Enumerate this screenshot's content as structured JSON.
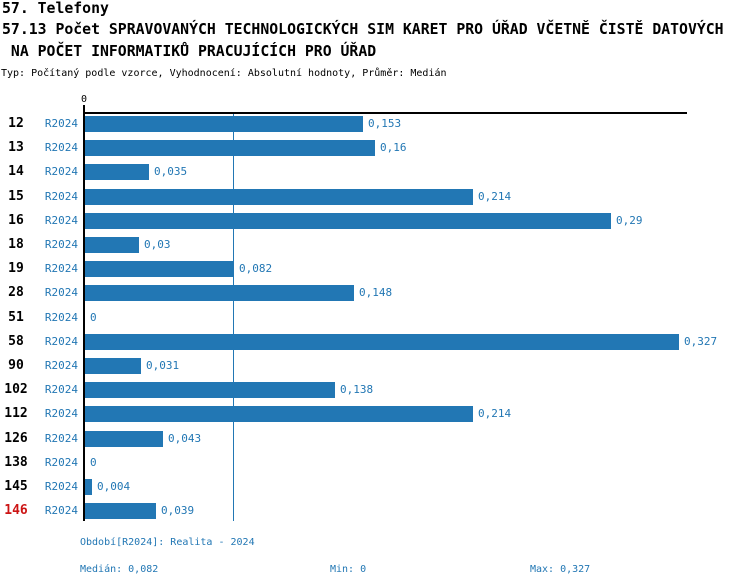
{
  "header": {
    "section_title": "57. Telefony",
    "indicator_title_line1": "57.13 Počet SPRAVOVANÝCH TECHNOLOGICKÝCH SIM KARET PRO ÚŘAD VČETNĚ ČISTĚ DATOVÝCH",
    "indicator_title_line2": " NA POČET INFORMATIKŮ PRACUJÍCÍCH PRO ÚŘAD",
    "meta": "Typ: Počítaný podle vzorce, Vyhodnocení: Absolutní hodnoty, Průměr: Medián"
  },
  "chart_data": {
    "type": "bar",
    "orientation": "horizontal",
    "series_label": "R2024",
    "axis_zero_label": "0",
    "xlim": [
      0,
      0.327
    ],
    "median_value": 0.082,
    "grid": false,
    "categories": [
      "12",
      "13",
      "14",
      "15",
      "16",
      "18",
      "19",
      "28",
      "51",
      "58",
      "90",
      "102",
      "112",
      "126",
      "138",
      "145",
      "146"
    ],
    "values": [
      0.153,
      0.16,
      0.035,
      0.214,
      0.29,
      0.03,
      0.082,
      0.148,
      0,
      0.327,
      0.031,
      0.138,
      0.214,
      0.043,
      0,
      0.004,
      0.039
    ],
    "value_labels": [
      "0,153",
      "0,16",
      "0,035",
      "0,214",
      "0,29",
      "0,03",
      "0,082",
      "0,148",
      "0",
      "0,327",
      "0,031",
      "0,138",
      "0,214",
      "0,043",
      "0",
      "0,004",
      "0,039"
    ],
    "highlighted_category": "146"
  },
  "footer": {
    "period": "Období[R2024]: Realita - 2024",
    "median": "Medián: 0,082",
    "min": "Min: 0",
    "max": "Max: 0,327"
  },
  "colors": {
    "accent_blue": "#2277b4",
    "highlight_red": "#cc1414",
    "axis_black": "#000000",
    "background": "#ffffff"
  }
}
